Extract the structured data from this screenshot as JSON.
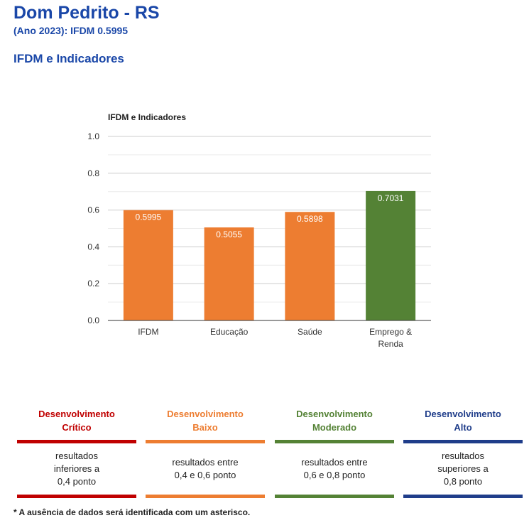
{
  "header": {
    "title": "Dom Pedrito - RS",
    "subtitle": "(Ano 2023): IFDM 0.5995",
    "section_title": "IFDM e Indicadores"
  },
  "chart_data": {
    "type": "bar",
    "title": "IFDM e Indicadores",
    "categories": [
      "IFDM",
      "Educação",
      "Saúde",
      "Emprego & Renda"
    ],
    "values": [
      0.5995,
      0.5055,
      0.5898,
      0.7031
    ],
    "value_labels": [
      "0.5995",
      "0.5055",
      "0.5898",
      "0.7031"
    ],
    "colors": [
      "#ed7d31",
      "#ed7d31",
      "#ed7d31",
      "#548235"
    ],
    "ylim": [
      0,
      1.0
    ],
    "yticks": [
      "0.0",
      "0.2",
      "0.4",
      "0.6",
      "0.8",
      "1.0"
    ],
    "grid": true
  },
  "legend": [
    {
      "title_line1": "Desenvolvimento",
      "title_line2": "Crítico",
      "color": "#c00000",
      "desc": [
        "resultados",
        "inferiores a",
        "0,4 ponto"
      ]
    },
    {
      "title_line1": "Desenvolvimento",
      "title_line2": "Baixo",
      "color": "#ed7d31",
      "desc": [
        "resultados entre",
        "0,4 e 0,6 ponto"
      ]
    },
    {
      "title_line1": "Desenvolvimento",
      "title_line2": "Moderado",
      "color": "#548235",
      "desc": [
        "resultados entre",
        "0,6 e 0,8 ponto"
      ]
    },
    {
      "title_line1": "Desenvolvimento",
      "title_line2": "Alto",
      "color": "#1f3d8a",
      "desc": [
        "resultados",
        "superiores a",
        "0,8 ponto"
      ]
    }
  ],
  "footnote": "* A ausência de dados será identificada com um asterisco."
}
